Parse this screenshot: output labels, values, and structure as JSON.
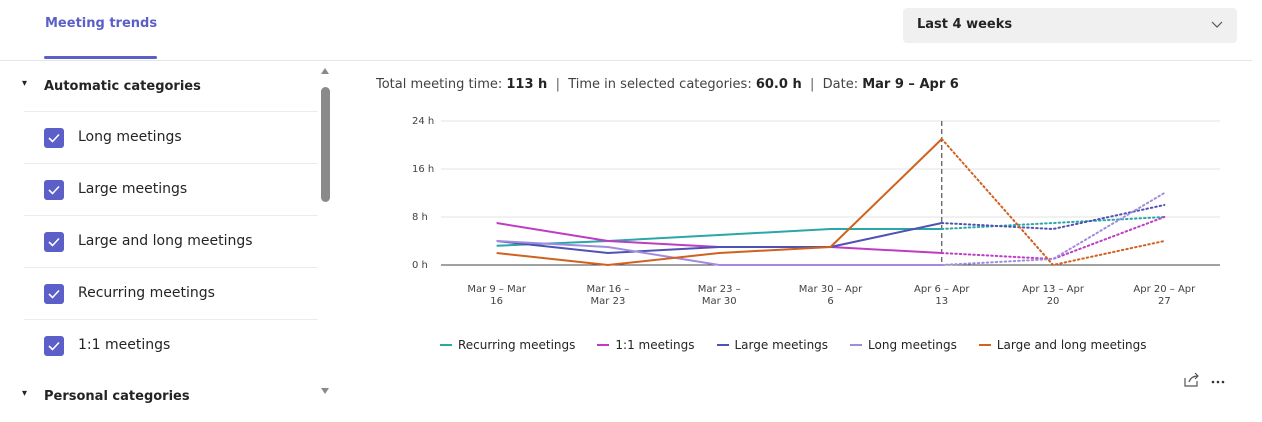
{
  "tab": "Meeting trends",
  "dropdown": "Last 4 weeks",
  "sidebar": {
    "groups": [
      {
        "title": "Automatic categories",
        "items": [
          "Long meetings",
          "Large meetings",
          "Large and long meetings",
          "Recurring meetings",
          "1:1 meetings"
        ]
      },
      {
        "title": "Personal categories",
        "items": []
      }
    ]
  },
  "summary": [
    {
      "label": "Total meeting time:",
      "value": "113 h"
    },
    {
      "label": "Time in selected categories:",
      "value": "60.0 h"
    },
    {
      "label": "Date:",
      "value": "Mar 9 – Apr 6"
    }
  ],
  "chart_data": {
    "type": "line",
    "categories": [
      "Mar 9 – Mar 16",
      "Mar 16 – Mar 23",
      "Mar 23 – Mar 30",
      "Mar 30 – Apr 6",
      "Apr 6 – Apr 13",
      "Apr 13 – Apr 20",
      "Apr 20 – Apr 27"
    ],
    "forecast_from_index": 4,
    "ylim": [
      0,
      24
    ],
    "yticks": [
      {
        "value": 0,
        "label": "0 h"
      },
      {
        "value": 8,
        "label": "8 h"
      },
      {
        "value": 16,
        "label": "16 h"
      },
      {
        "value": 24,
        "label": "24 h"
      }
    ],
    "grid": true,
    "series": [
      {
        "name": "Recurring meetings",
        "color": "#2aa7a7",
        "values": [
          3.2,
          4,
          5,
          6,
          6,
          7,
          8
        ]
      },
      {
        "name": "1:1 meetings",
        "color": "#c03bc4",
        "values": [
          7,
          4,
          3,
          3,
          2,
          1,
          8
        ]
      },
      {
        "name": "Large meetings",
        "color": "#4f52b2",
        "values": [
          4,
          2,
          3,
          3,
          7,
          6,
          10
        ]
      },
      {
        "name": "Long meetings",
        "color": "#a08be0",
        "values": [
          4,
          3,
          0,
          0,
          0,
          1,
          12
        ]
      },
      {
        "name": "Large and long meetings",
        "color": "#d0611f",
        "values": [
          2,
          0,
          2,
          3,
          21,
          0,
          4
        ]
      }
    ]
  }
}
